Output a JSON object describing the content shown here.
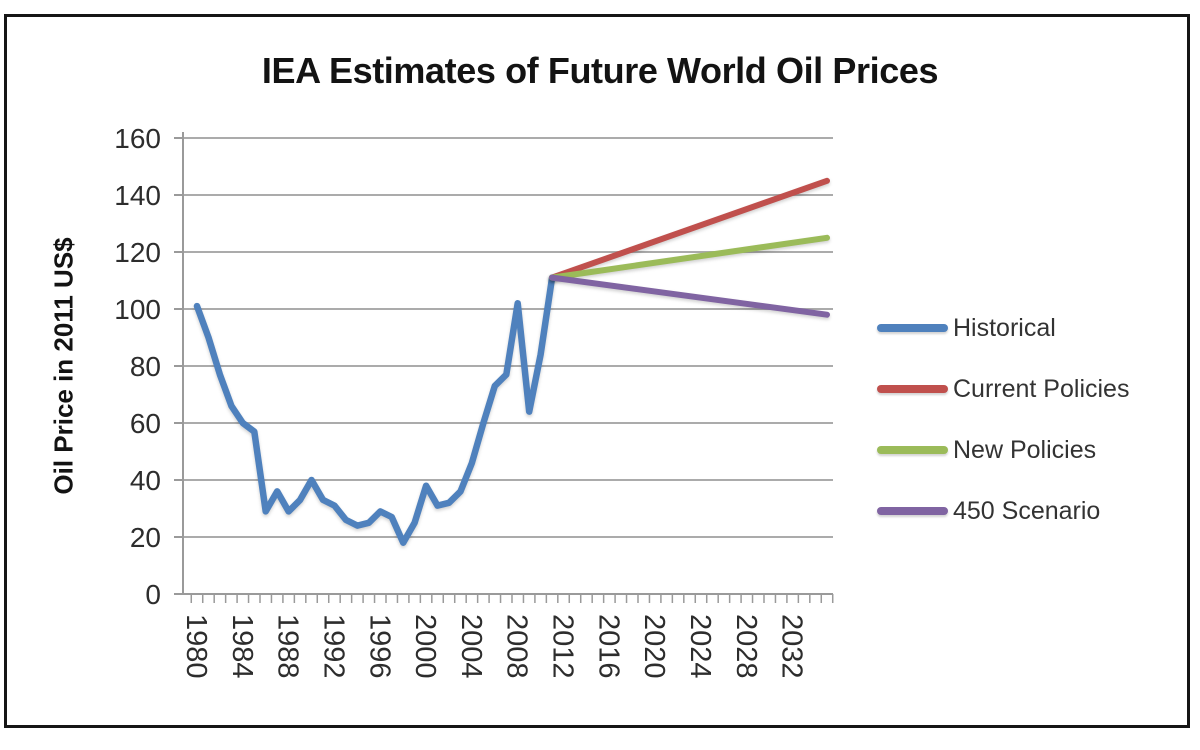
{
  "window": {
    "background_color": "#ffffff",
    "frame_color": "#161616"
  },
  "chart_data": {
    "type": "line",
    "title": "IEA Estimates of Future World Oil Prices",
    "ylabel": "Oil Price in 2011 US$",
    "xlabel": "",
    "ylim": [
      0,
      160
    ],
    "y_ticks": [
      0,
      20,
      40,
      60,
      80,
      100,
      120,
      140,
      160
    ],
    "x_label_years": [
      1980,
      1984,
      1988,
      1992,
      1996,
      2000,
      2004,
      2008,
      2012,
      2016,
      2020,
      2024,
      2028,
      2032
    ],
    "x_range_years": [
      1980,
      2035
    ],
    "x_minor_tick_every_years": 1,
    "grid": "horizontal-gridlines-on",
    "legend_position": "right",
    "axis_color": "#9a9a9a",
    "grid_color": "#ababab",
    "series": [
      {
        "name": "Historical",
        "color": "#4F81BD",
        "x": [
          1980,
          1981,
          1982,
          1983,
          1984,
          1985,
          1986,
          1987,
          1988,
          1989,
          1990,
          1991,
          1992,
          1993,
          1994,
          1995,
          1996,
          1997,
          1998,
          1999,
          2000,
          2001,
          2002,
          2003,
          2004,
          2005,
          2006,
          2007,
          2008,
          2009,
          2010,
          2011
        ],
        "y": [
          101,
          90,
          77,
          66,
          60,
          57,
          29,
          36,
          29,
          33,
          40,
          33,
          31,
          26,
          24,
          25,
          29,
          27,
          18,
          25,
          38,
          31,
          32,
          36,
          46,
          60,
          73,
          77,
          102,
          64,
          84,
          111
        ]
      },
      {
        "name": "Current Policies",
        "color": "#C0504D",
        "x": [
          2011,
          2035
        ],
        "y": [
          111,
          145
        ]
      },
      {
        "name": "New Policies",
        "color": "#9BBB59",
        "x": [
          2011,
          2035
        ],
        "y": [
          111,
          125
        ]
      },
      {
        "name": "450 Scenario",
        "color": "#8064A2",
        "x": [
          2011,
          2035
        ],
        "y": [
          111,
          98
        ]
      }
    ]
  }
}
